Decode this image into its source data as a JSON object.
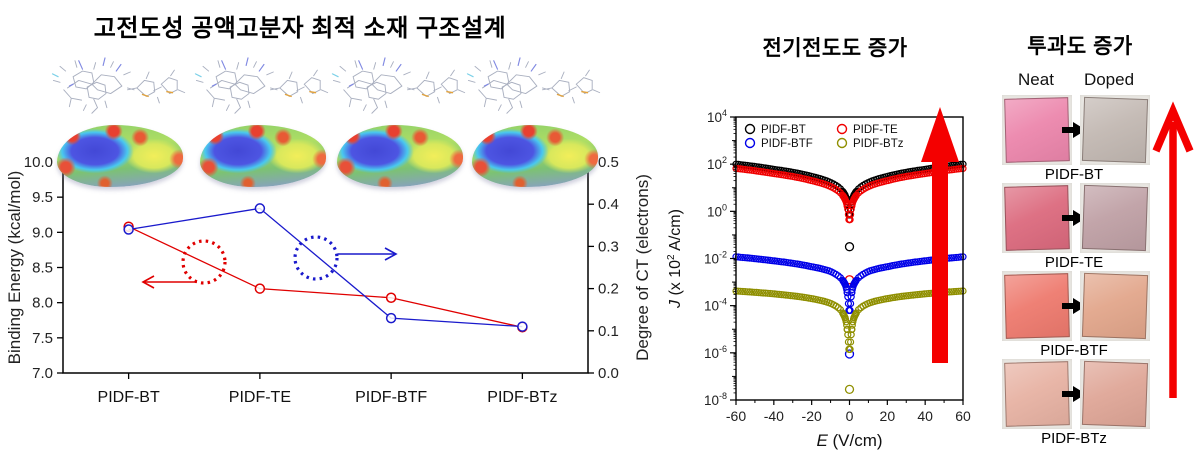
{
  "left_panel": {
    "title": "고전도성 공액고분자 최적 소재 구조설계"
  },
  "middle_panel": {
    "title": "전기전도도 증가"
  },
  "right_panel": {
    "title": "투과도 증가",
    "columns": [
      "Neat",
      "Doped"
    ],
    "rows": [
      {
        "label": "PIDF-BT",
        "neat_color": "#ec86ac",
        "doped_color": "#c2b8b2"
      },
      {
        "label": "PIDF-TE",
        "neat_color": "#dc6a7e",
        "doped_color": "#bfa0a5"
      },
      {
        "label": "PIDF-BTF",
        "neat_color": "#ee7a6e",
        "doped_color": "#e2a68b"
      },
      {
        "label": "PIDF-BTz",
        "neat_color": "#e7b2a3",
        "doped_color": "#dfa697"
      }
    ]
  },
  "colors": {
    "increase_arrow": "#f40000",
    "binding_series": "#e00000",
    "ct_series": "#1a1acc",
    "axis": "#000000"
  },
  "chart_data": [
    {
      "name": "binding-energy-and-degree-of-ct",
      "type": "line",
      "categories": [
        "PIDF-BT",
        "PIDF-TE",
        "PIDF-BTF",
        "PIDF-BTz"
      ],
      "series": [
        {
          "name": "Binding Energy",
          "axis": "left",
          "color": "#e00000",
          "values": [
            9.08,
            8.2,
            8.07,
            7.65
          ]
        },
        {
          "name": "Degree of CT",
          "axis": "right",
          "color": "#1a1acc",
          "values": [
            0.34,
            0.39,
            0.13,
            0.11
          ]
        }
      ],
      "left_axis": {
        "label": "Binding Energy (kcal/mol)",
        "min": 7.0,
        "max": 10.0,
        "ticks": [
          "7.0",
          "7.5",
          "8.0",
          "8.5",
          "9.0",
          "9.5",
          "10.0"
        ]
      },
      "right_axis": {
        "label": "Degree of CT (electrons)",
        "min": 0.0,
        "max": 0.5,
        "ticks": [
          "0.0",
          "0.1",
          "0.2",
          "0.3",
          "0.4",
          "0.5"
        ]
      },
      "grid": false,
      "annotations": [
        {
          "type": "dotted-circle-with-arrow",
          "series": "Binding Energy",
          "direction": "left",
          "color": "#e00000"
        },
        {
          "type": "dotted-circle-with-arrow",
          "series": "Degree of CT",
          "direction": "right",
          "color": "#1a1acc"
        }
      ]
    },
    {
      "name": "current-density-vs-electric-field",
      "type": "scatter",
      "xlabel": {
        "symbol": "E",
        "rest": " (V/cm)"
      },
      "ylabel": {
        "symbol": "J",
        "pre": " (x 10",
        "sup": "2",
        "post": " A/cm)"
      },
      "x_axis": {
        "min": -60,
        "max": 60,
        "ticks": [
          -60,
          -40,
          -20,
          0,
          20,
          40,
          60
        ]
      },
      "y_axis": {
        "scale": "log",
        "exponent_ticks": [
          4,
          2,
          0,
          -2,
          -4,
          -6,
          -8
        ]
      },
      "legend_position": "top-inside",
      "series": [
        {
          "name": "PIDF-BT",
          "color": "#000000",
          "curve_logJ_vs_absE": [
            [
              0.4,
              -0.15
            ],
            [
              1,
              0.32
            ],
            [
              2,
              0.62
            ],
            [
              5,
              0.97
            ],
            [
              10,
              1.22
            ],
            [
              20,
              1.48
            ],
            [
              40,
              1.78
            ],
            [
              60,
              2.0
            ]
          ],
          "isolated_zero_logJ": -1.5
        },
        {
          "name": "PIDF-TE",
          "color": "#f00000",
          "curve_logJ_vs_absE": [
            [
              0.4,
              -0.35
            ],
            [
              1,
              0.15
            ],
            [
              2,
              0.45
            ],
            [
              5,
              0.8
            ],
            [
              10,
              1.05
            ],
            [
              20,
              1.3
            ],
            [
              40,
              1.6
            ],
            [
              60,
              1.82
            ]
          ],
          "isolated_zero_logJ": -2.9
        },
        {
          "name": "PIDF-BTF",
          "color": "#0000e8",
          "curve_logJ_vs_absE": [
            [
              0.4,
              -4.2
            ],
            [
              1,
              -3.55
            ],
            [
              2,
              -3.15
            ],
            [
              5,
              -2.8
            ],
            [
              10,
              -2.55
            ],
            [
              20,
              -2.35
            ],
            [
              40,
              -2.1
            ],
            [
              60,
              -1.93
            ]
          ],
          "isolated_zero_logJ": -6.05
        },
        {
          "name": "PIDF-BTz",
          "color": "#8f8f00",
          "curve_logJ_vs_absE": [
            [
              0.4,
              -5.85
            ],
            [
              1,
              -5.15
            ],
            [
              2,
              -4.6
            ],
            [
              5,
              -4.15
            ],
            [
              10,
              -3.9
            ],
            [
              20,
              -3.7
            ],
            [
              40,
              -3.5
            ],
            [
              60,
              -3.38
            ]
          ],
          "isolated_zero_logJ": -7.55
        }
      ]
    }
  ]
}
